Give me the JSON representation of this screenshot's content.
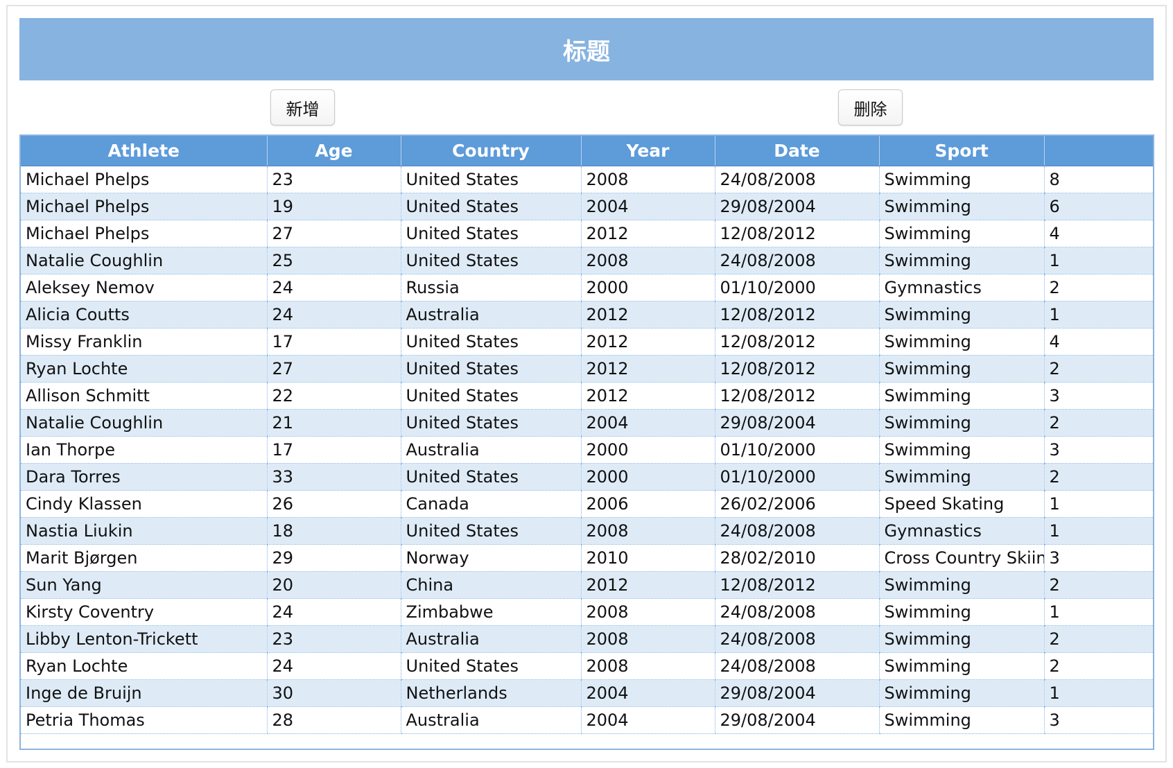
{
  "title": "标题",
  "buttons": {
    "add_label": "新增",
    "delete_label": "删除"
  },
  "colors": {
    "title_bar": "#87b3e0",
    "header": "#5d9bd9",
    "row_alt": "#deebf7"
  },
  "grid": {
    "columns": [
      "Athlete",
      "Age",
      "Country",
      "Year",
      "Date",
      "Sport",
      ""
    ],
    "rows": [
      [
        "Michael Phelps",
        "23",
        "United States",
        "2008",
        "24/08/2008",
        "Swimming",
        "8"
      ],
      [
        "Michael Phelps",
        "19",
        "United States",
        "2004",
        "29/08/2004",
        "Swimming",
        "6"
      ],
      [
        "Michael Phelps",
        "27",
        "United States",
        "2012",
        "12/08/2012",
        "Swimming",
        "4"
      ],
      [
        "Natalie Coughlin",
        "25",
        "United States",
        "2008",
        "24/08/2008",
        "Swimming",
        "1"
      ],
      [
        "Aleksey Nemov",
        "24",
        "Russia",
        "2000",
        "01/10/2000",
        "Gymnastics",
        "2"
      ],
      [
        "Alicia Coutts",
        "24",
        "Australia",
        "2012",
        "12/08/2012",
        "Swimming",
        "1"
      ],
      [
        "Missy Franklin",
        "17",
        "United States",
        "2012",
        "12/08/2012",
        "Swimming",
        "4"
      ],
      [
        "Ryan Lochte",
        "27",
        "United States",
        "2012",
        "12/08/2012",
        "Swimming",
        "2"
      ],
      [
        "Allison Schmitt",
        "22",
        "United States",
        "2012",
        "12/08/2012",
        "Swimming",
        "3"
      ],
      [
        "Natalie Coughlin",
        "21",
        "United States",
        "2004",
        "29/08/2004",
        "Swimming",
        "2"
      ],
      [
        "Ian Thorpe",
        "17",
        "Australia",
        "2000",
        "01/10/2000",
        "Swimming",
        "3"
      ],
      [
        "Dara Torres",
        "33",
        "United States",
        "2000",
        "01/10/2000",
        "Swimming",
        "2"
      ],
      [
        "Cindy Klassen",
        "26",
        "Canada",
        "2006",
        "26/02/2006",
        "Speed Skating",
        "1"
      ],
      [
        "Nastia Liukin",
        "18",
        "United States",
        "2008",
        "24/08/2008",
        "Gymnastics",
        "1"
      ],
      [
        "Marit Bjørgen",
        "29",
        "Norway",
        "2010",
        "28/02/2010",
        "Cross Country Skiing",
        "3"
      ],
      [
        "Sun Yang",
        "20",
        "China",
        "2012",
        "12/08/2012",
        "Swimming",
        "2"
      ],
      [
        "Kirsty Coventry",
        "24",
        "Zimbabwe",
        "2008",
        "24/08/2008",
        "Swimming",
        "1"
      ],
      [
        "Libby Lenton-Trickett",
        "23",
        "Australia",
        "2008",
        "24/08/2008",
        "Swimming",
        "2"
      ],
      [
        "Ryan Lochte",
        "24",
        "United States",
        "2008",
        "24/08/2008",
        "Swimming",
        "2"
      ],
      [
        "Inge de Bruijn",
        "30",
        "Netherlands",
        "2004",
        "29/08/2004",
        "Swimming",
        "1"
      ],
      [
        "Petria Thomas",
        "28",
        "Australia",
        "2004",
        "29/08/2004",
        "Swimming",
        "3"
      ]
    ]
  }
}
